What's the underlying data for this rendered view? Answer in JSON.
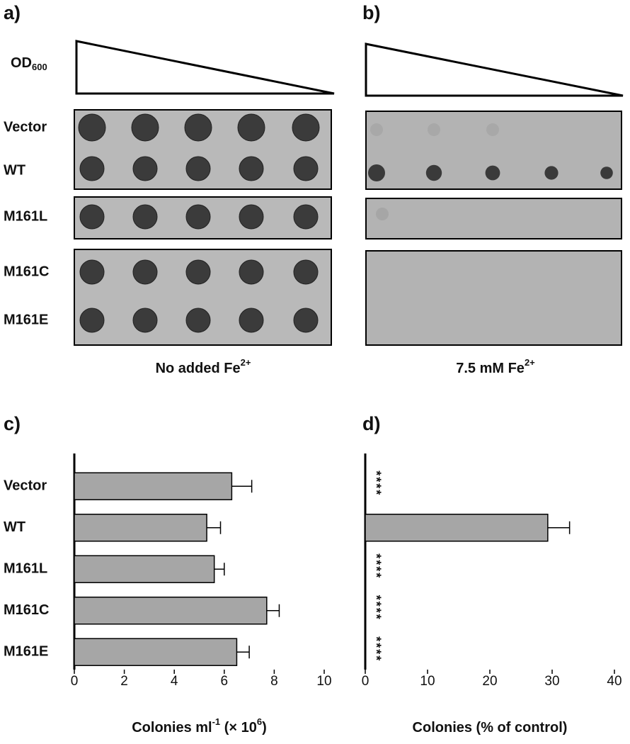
{
  "figure": {
    "panel_a": {
      "label": "a)",
      "od": [
        "OD",
        "600"
      ],
      "condition": [
        "No added Fe",
        "2+"
      ]
    },
    "panel_b": {
      "label": "b)",
      "condition": [
        "7.5 mM Fe",
        "2+"
      ]
    },
    "strains": [
      "Vector",
      "WT",
      "M161L",
      "M161C",
      "M161E"
    ]
  },
  "chart_data": [
    {
      "type": "hbar",
      "panel": "c)",
      "categories": [
        "Vector",
        "WT",
        "M161L",
        "M161C",
        "M161E"
      ],
      "values": [
        6.3,
        5.3,
        5.6,
        7.7,
        6.5
      ],
      "errors": [
        0.8,
        0.55,
        0.4,
        0.5,
        0.5
      ],
      "color": "#a6a6a6",
      "xlim": [
        0,
        10
      ],
      "xticks": [
        0,
        2,
        4,
        6,
        8,
        10
      ],
      "xlabel": [
        "Colonies ml",
        "-1",
        " (× 10",
        "6",
        ")"
      ]
    },
    {
      "type": "hbar",
      "panel": "d)",
      "values": [
        0,
        29.3,
        0,
        0,
        0
      ],
      "errors": [
        null,
        3.5,
        null,
        null,
        null
      ],
      "annotations": [
        "****",
        null,
        "****",
        "****",
        "****"
      ],
      "color": "#a6a6a6",
      "xlim": [
        0,
        40
      ],
      "xticks": [
        0,
        10,
        20,
        30,
        40
      ],
      "xlabel": [
        "Colonies (% of control)"
      ]
    }
  ]
}
